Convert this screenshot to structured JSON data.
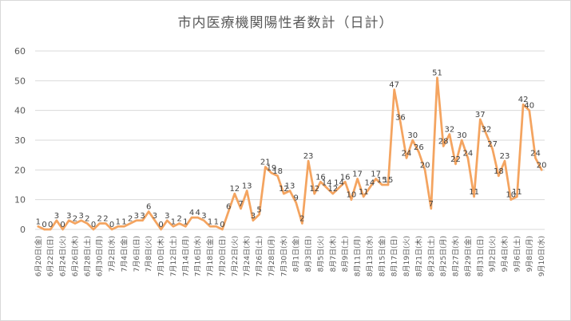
{
  "chart_data": {
    "type": "line",
    "title": "市内医療機関陽性者数計（日計）",
    "xlabel": "",
    "ylabel": "",
    "ylim": [
      0,
      60
    ],
    "yticks": [
      0,
      10,
      20,
      30,
      40,
      50,
      60
    ],
    "grid": true,
    "legend": "none",
    "line_color": "#f4a460",
    "x_labels_shown": [
      "6月20日(金)",
      "6月22日(日)",
      "6月24日(火)",
      "6月26日(木)",
      "6月28日(土)",
      "6月30日(月)",
      "7月2日(水)",
      "7月4日(金)",
      "7月6日(日)",
      "7月8日(火)",
      "7月10日(木)",
      "7月12日(土)",
      "7月14日(月)",
      "7月16日(水)",
      "7月18日(金)",
      "7月20日(日)",
      "7月22日(火)",
      "7月24日(木)",
      "7月26日(土)",
      "7月28日(月)",
      "7月30日(水)",
      "8月1日(金)",
      "8月3日(日)",
      "8月5日(火)",
      "8月7日(木)",
      "8月9日(土)",
      "8月11日(月)",
      "8月13日(水)",
      "8月15日(金)",
      "8月17日(日)",
      "8月19日(火)",
      "8月21日(木)",
      "8月23日(土)",
      "8月25日(月)",
      "8月27日(水)",
      "8月29日(金)",
      "8月31日(日)",
      "9月2日(火)",
      "9月4日(木)",
      "9月6日(土)",
      "9月8日(月)",
      "9月10日(水)"
    ],
    "values": [
      1,
      0,
      0,
      3,
      0,
      3,
      2,
      3,
      2,
      0,
      2,
      2,
      0,
      1,
      1,
      2,
      3,
      3,
      6,
      3,
      0,
      3,
      1,
      2,
      1,
      4,
      4,
      3,
      1,
      1,
      0,
      6,
      12,
      7,
      13,
      3,
      5,
      21,
      19,
      18,
      12,
      13,
      9,
      2,
      23,
      12,
      16,
      14,
      12,
      14,
      16,
      10,
      17,
      11,
      14,
      17,
      15,
      15,
      47,
      36,
      24,
      30,
      26,
      20,
      7,
      51,
      28,
      32,
      22,
      30,
      24,
      11,
      37,
      32,
      27,
      18,
      23,
      10,
      11,
      42,
      40,
      24,
      20
    ]
  }
}
